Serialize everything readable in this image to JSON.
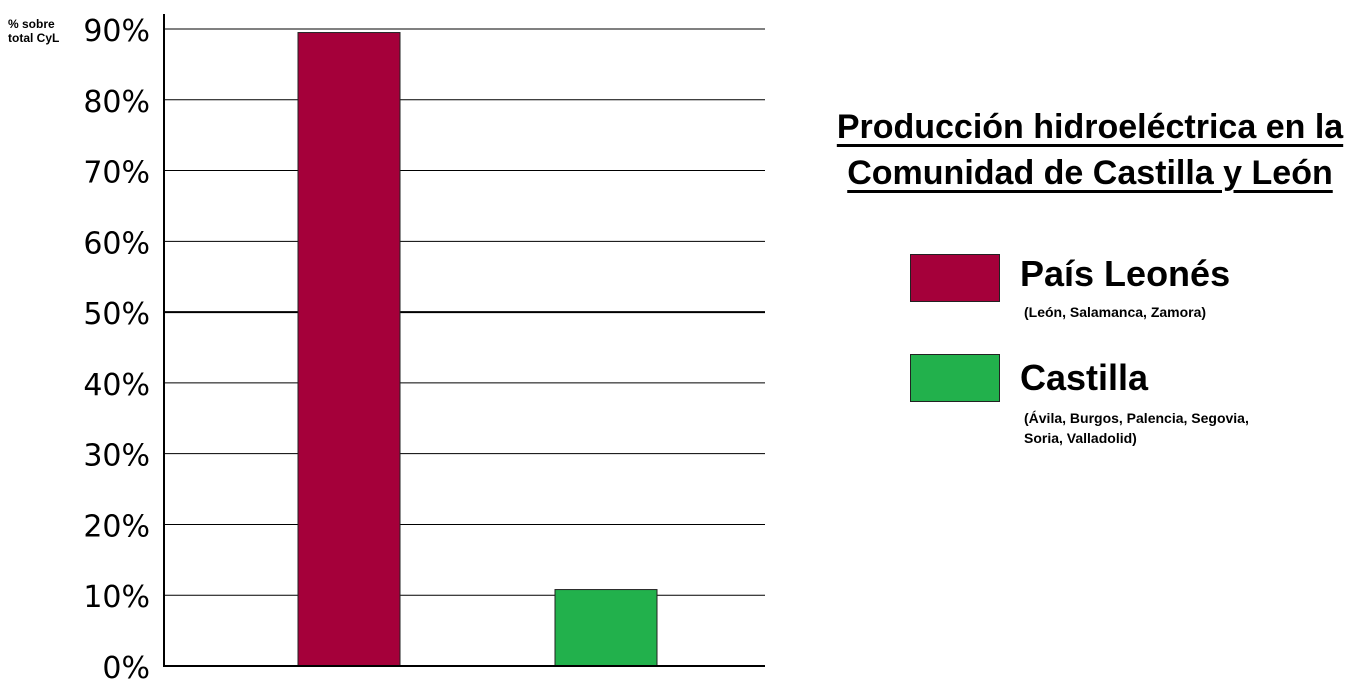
{
  "chart_data": {
    "type": "bar",
    "title_lines": [
      "Producción hidroeléctrica en la",
      "Comunidad de Castilla y León"
    ],
    "ylabel_lines": [
      "% sobre",
      "total CyL"
    ],
    "ylim": [
      0,
      90
    ],
    "y_ticks": [
      "0%",
      "10%",
      "20%",
      "30%",
      "40%",
      "50%",
      "60%",
      "70%",
      "80%",
      "90%"
    ],
    "grid": true,
    "legend_position": "right",
    "series": [
      {
        "name": "País Leonés",
        "detail": "(León, Salamanca, Zamora)",
        "value": 89.5,
        "color": "#a5003a"
      },
      {
        "name": "Castilla",
        "detail": "(Ávila, Burgos, Palencia, Segovia, Soria, Valladolid)",
        "value": 10.8,
        "color": "#22b14c"
      }
    ]
  }
}
